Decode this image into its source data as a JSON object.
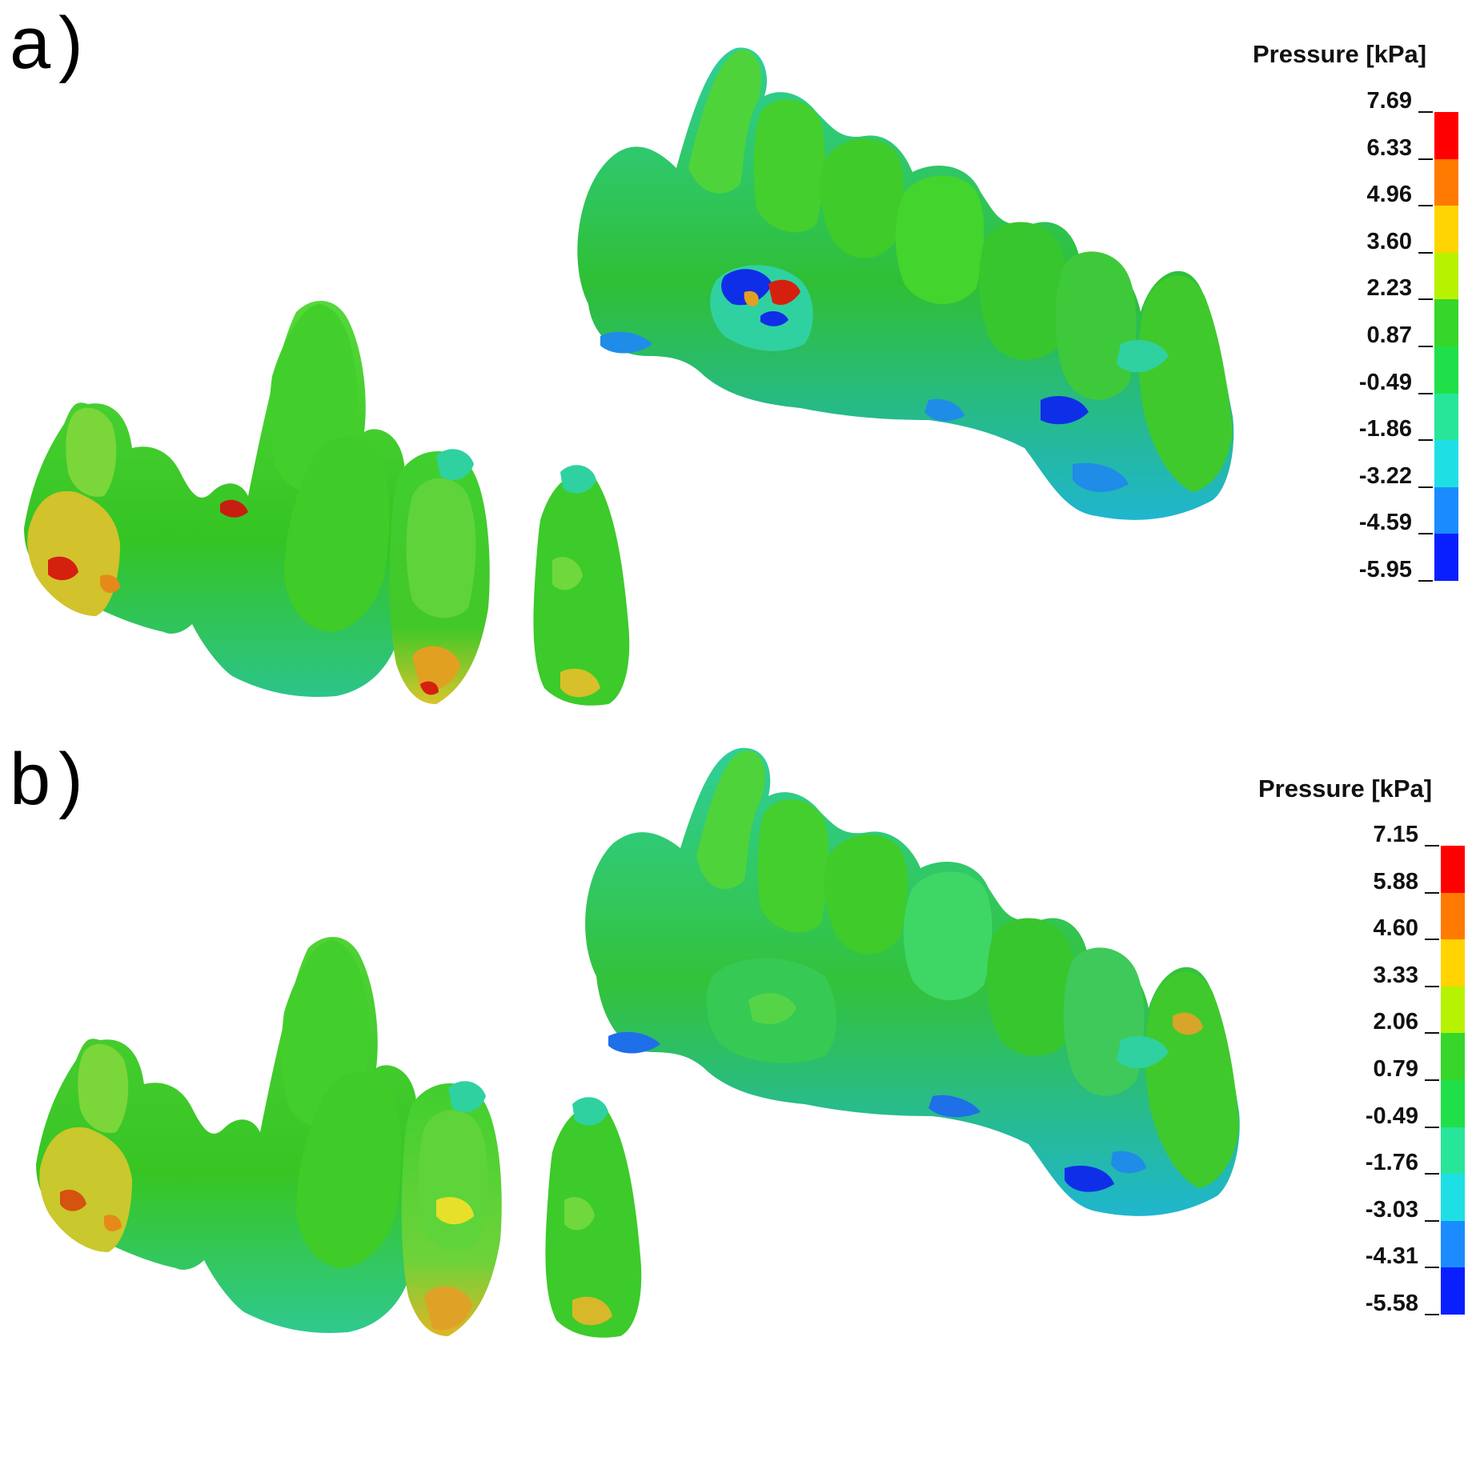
{
  "panels": [
    {
      "letter": "a)",
      "legend": {
        "title": "Pressure [kPa]",
        "ticks": [
          "7.69",
          "6.33",
          "4.96",
          "3.60",
          "2.23",
          "0.87",
          "-0.49",
          "-1.86",
          "-3.22",
          "-4.59",
          "-5.95"
        ]
      }
    },
    {
      "letter": "b)",
      "legend": {
        "title": "Pressure [kPa]",
        "ticks": [
          "7.15",
          "5.88",
          "4.60",
          "3.33",
          "2.06",
          "0.79",
          "-0.49",
          "-1.76",
          "-3.03",
          "-4.31",
          "-5.58"
        ]
      }
    }
  ],
  "colormap": [
    "#ff0000",
    "#ff7a00",
    "#ffd400",
    "#b7f200",
    "#37d62a",
    "#20e04a",
    "#27e69a",
    "#1ee0e4",
    "#1a8cff",
    "#0a1fff"
  ],
  "surface_colors": {
    "base_green": "#35c61f",
    "light_green": "#63e23c",
    "teal": "#2ed3a0",
    "cyan": "#1fc7d6",
    "blue": "#0f2ee8",
    "yellow": "#d9e02a",
    "orange": "#e58a1a",
    "red": "#d6200f"
  }
}
